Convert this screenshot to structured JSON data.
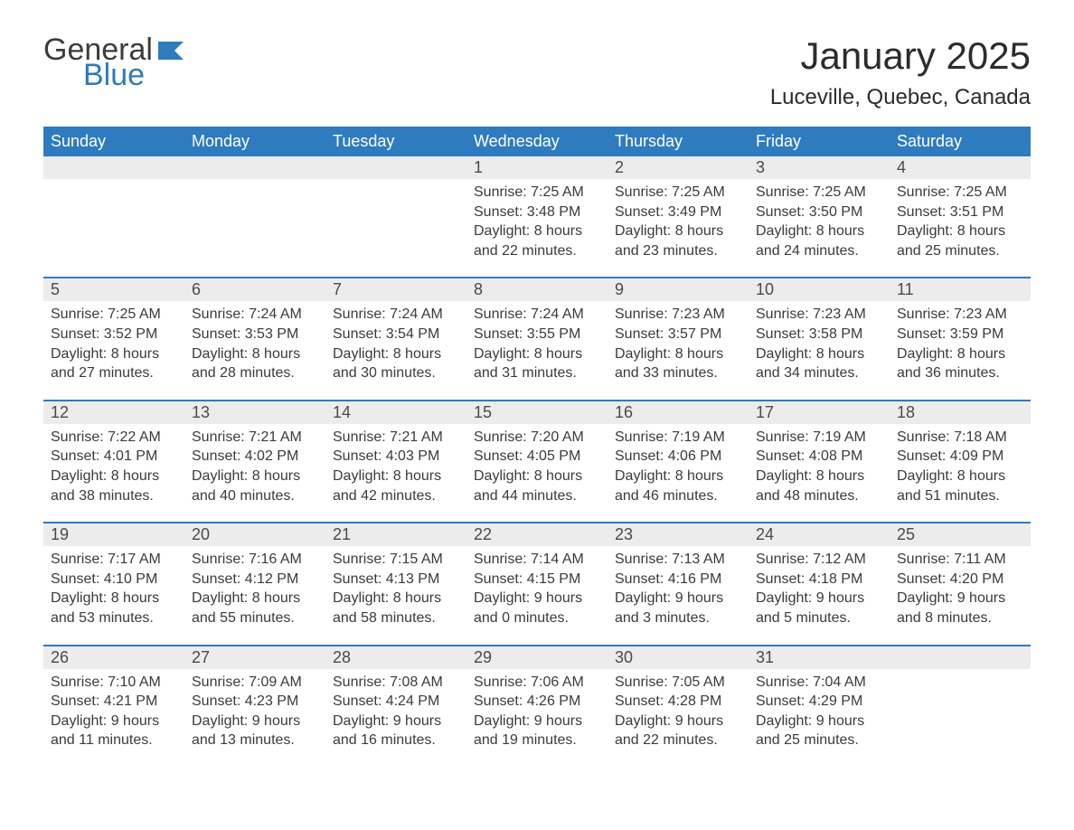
{
  "logo": {
    "general": "General",
    "blue": "Blue"
  },
  "title": "January 2025",
  "location": "Luceville, Quebec, Canada",
  "colors": {
    "brand_blue": "#2f7bbf",
    "header_bg": "#2f7bbf",
    "header_text": "#ffffff",
    "daynum_bg": "#ececec",
    "row_border": "#2f7bbf",
    "body_text": "#3b3b3b",
    "page_bg": "#ffffff"
  },
  "fonts": {
    "title_size_pt": 32,
    "location_size_pt": 18,
    "header_size_pt": 14,
    "body_size_pt": 12
  },
  "day_headers": [
    "Sunday",
    "Monday",
    "Tuesday",
    "Wednesday",
    "Thursday",
    "Friday",
    "Saturday"
  ],
  "weeks": [
    [
      null,
      null,
      null,
      {
        "n": "1",
        "sr": "Sunrise: 7:25 AM",
        "ss": "Sunset: 3:48 PM",
        "d1": "Daylight: 8 hours",
        "d2": "and 22 minutes."
      },
      {
        "n": "2",
        "sr": "Sunrise: 7:25 AM",
        "ss": "Sunset: 3:49 PM",
        "d1": "Daylight: 8 hours",
        "d2": "and 23 minutes."
      },
      {
        "n": "3",
        "sr": "Sunrise: 7:25 AM",
        "ss": "Sunset: 3:50 PM",
        "d1": "Daylight: 8 hours",
        "d2": "and 24 minutes."
      },
      {
        "n": "4",
        "sr": "Sunrise: 7:25 AM",
        "ss": "Sunset: 3:51 PM",
        "d1": "Daylight: 8 hours",
        "d2": "and 25 minutes."
      }
    ],
    [
      {
        "n": "5",
        "sr": "Sunrise: 7:25 AM",
        "ss": "Sunset: 3:52 PM",
        "d1": "Daylight: 8 hours",
        "d2": "and 27 minutes."
      },
      {
        "n": "6",
        "sr": "Sunrise: 7:24 AM",
        "ss": "Sunset: 3:53 PM",
        "d1": "Daylight: 8 hours",
        "d2": "and 28 minutes."
      },
      {
        "n": "7",
        "sr": "Sunrise: 7:24 AM",
        "ss": "Sunset: 3:54 PM",
        "d1": "Daylight: 8 hours",
        "d2": "and 30 minutes."
      },
      {
        "n": "8",
        "sr": "Sunrise: 7:24 AM",
        "ss": "Sunset: 3:55 PM",
        "d1": "Daylight: 8 hours",
        "d2": "and 31 minutes."
      },
      {
        "n": "9",
        "sr": "Sunrise: 7:23 AM",
        "ss": "Sunset: 3:57 PM",
        "d1": "Daylight: 8 hours",
        "d2": "and 33 minutes."
      },
      {
        "n": "10",
        "sr": "Sunrise: 7:23 AM",
        "ss": "Sunset: 3:58 PM",
        "d1": "Daylight: 8 hours",
        "d2": "and 34 minutes."
      },
      {
        "n": "11",
        "sr": "Sunrise: 7:23 AM",
        "ss": "Sunset: 3:59 PM",
        "d1": "Daylight: 8 hours",
        "d2": "and 36 minutes."
      }
    ],
    [
      {
        "n": "12",
        "sr": "Sunrise: 7:22 AM",
        "ss": "Sunset: 4:01 PM",
        "d1": "Daylight: 8 hours",
        "d2": "and 38 minutes."
      },
      {
        "n": "13",
        "sr": "Sunrise: 7:21 AM",
        "ss": "Sunset: 4:02 PM",
        "d1": "Daylight: 8 hours",
        "d2": "and 40 minutes."
      },
      {
        "n": "14",
        "sr": "Sunrise: 7:21 AM",
        "ss": "Sunset: 4:03 PM",
        "d1": "Daylight: 8 hours",
        "d2": "and 42 minutes."
      },
      {
        "n": "15",
        "sr": "Sunrise: 7:20 AM",
        "ss": "Sunset: 4:05 PM",
        "d1": "Daylight: 8 hours",
        "d2": "and 44 minutes."
      },
      {
        "n": "16",
        "sr": "Sunrise: 7:19 AM",
        "ss": "Sunset: 4:06 PM",
        "d1": "Daylight: 8 hours",
        "d2": "and 46 minutes."
      },
      {
        "n": "17",
        "sr": "Sunrise: 7:19 AM",
        "ss": "Sunset: 4:08 PM",
        "d1": "Daylight: 8 hours",
        "d2": "and 48 minutes."
      },
      {
        "n": "18",
        "sr": "Sunrise: 7:18 AM",
        "ss": "Sunset: 4:09 PM",
        "d1": "Daylight: 8 hours",
        "d2": "and 51 minutes."
      }
    ],
    [
      {
        "n": "19",
        "sr": "Sunrise: 7:17 AM",
        "ss": "Sunset: 4:10 PM",
        "d1": "Daylight: 8 hours",
        "d2": "and 53 minutes."
      },
      {
        "n": "20",
        "sr": "Sunrise: 7:16 AM",
        "ss": "Sunset: 4:12 PM",
        "d1": "Daylight: 8 hours",
        "d2": "and 55 minutes."
      },
      {
        "n": "21",
        "sr": "Sunrise: 7:15 AM",
        "ss": "Sunset: 4:13 PM",
        "d1": "Daylight: 8 hours",
        "d2": "and 58 minutes."
      },
      {
        "n": "22",
        "sr": "Sunrise: 7:14 AM",
        "ss": "Sunset: 4:15 PM",
        "d1": "Daylight: 9 hours",
        "d2": "and 0 minutes."
      },
      {
        "n": "23",
        "sr": "Sunrise: 7:13 AM",
        "ss": "Sunset: 4:16 PM",
        "d1": "Daylight: 9 hours",
        "d2": "and 3 minutes."
      },
      {
        "n": "24",
        "sr": "Sunrise: 7:12 AM",
        "ss": "Sunset: 4:18 PM",
        "d1": "Daylight: 9 hours",
        "d2": "and 5 minutes."
      },
      {
        "n": "25",
        "sr": "Sunrise: 7:11 AM",
        "ss": "Sunset: 4:20 PM",
        "d1": "Daylight: 9 hours",
        "d2": "and 8 minutes."
      }
    ],
    [
      {
        "n": "26",
        "sr": "Sunrise: 7:10 AM",
        "ss": "Sunset: 4:21 PM",
        "d1": "Daylight: 9 hours",
        "d2": "and 11 minutes."
      },
      {
        "n": "27",
        "sr": "Sunrise: 7:09 AM",
        "ss": "Sunset: 4:23 PM",
        "d1": "Daylight: 9 hours",
        "d2": "and 13 minutes."
      },
      {
        "n": "28",
        "sr": "Sunrise: 7:08 AM",
        "ss": "Sunset: 4:24 PM",
        "d1": "Daylight: 9 hours",
        "d2": "and 16 minutes."
      },
      {
        "n": "29",
        "sr": "Sunrise: 7:06 AM",
        "ss": "Sunset: 4:26 PM",
        "d1": "Daylight: 9 hours",
        "d2": "and 19 minutes."
      },
      {
        "n": "30",
        "sr": "Sunrise: 7:05 AM",
        "ss": "Sunset: 4:28 PM",
        "d1": "Daylight: 9 hours",
        "d2": "and 22 minutes."
      },
      {
        "n": "31",
        "sr": "Sunrise: 7:04 AM",
        "ss": "Sunset: 4:29 PM",
        "d1": "Daylight: 9 hours",
        "d2": "and 25 minutes."
      },
      null
    ]
  ]
}
